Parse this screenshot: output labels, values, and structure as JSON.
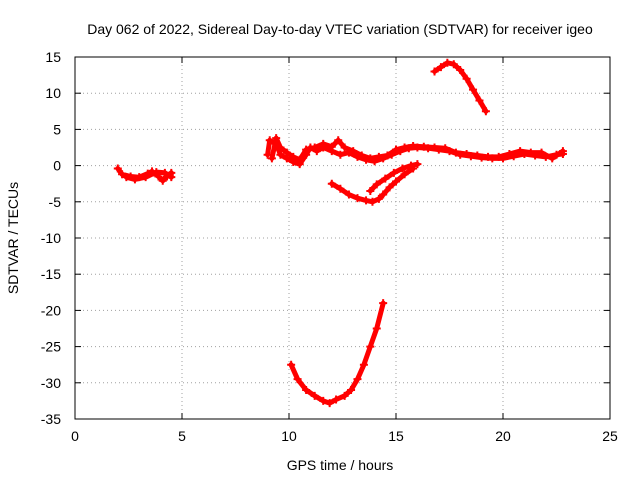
{
  "chart_data": {
    "type": "scatter",
    "title": "Day 062 of 2022, Sidereal Day-to-day VTEC variation (SDTVAR) for receiver igeo",
    "xlabel": "GPS time / hours",
    "ylabel": "SDTVAR / TECUs",
    "xlim": [
      0,
      25
    ],
    "ylim": [
      -35,
      15
    ],
    "xticks": [
      0,
      5,
      10,
      15,
      20,
      25
    ],
    "yticks": [
      -35,
      -30,
      -25,
      -20,
      -15,
      -10,
      -5,
      0,
      5,
      10,
      15
    ],
    "grid": true,
    "legend": "none",
    "series_color": "#ff0000",
    "series": [
      {
        "name": "arc-1",
        "points": [
          [
            2.0,
            -0.4
          ],
          [
            2.2,
            -1.2
          ],
          [
            2.6,
            -1.5
          ],
          [
            3.0,
            -1.6
          ],
          [
            3.4,
            -1.1
          ],
          [
            3.6,
            -0.8
          ],
          [
            3.9,
            -1.5
          ],
          [
            4.1,
            -2.1
          ],
          [
            4.3,
            -1.5
          ],
          [
            4.5,
            -1.0
          ],
          [
            4.5,
            -1.6
          ],
          [
            4.2,
            -1.0
          ],
          [
            3.8,
            -0.9
          ],
          [
            3.3,
            -1.6
          ],
          [
            2.8,
            -1.9
          ],
          [
            2.4,
            -1.6
          ]
        ]
      },
      {
        "name": "arc-2",
        "points": [
          [
            9.0,
            1.5
          ],
          [
            9.1,
            3.5
          ],
          [
            9.4,
            3.0
          ],
          [
            9.6,
            1.5
          ],
          [
            9.9,
            1.0
          ],
          [
            10.2,
            0.5
          ],
          [
            10.5,
            0.2
          ],
          [
            10.8,
            1.5
          ],
          [
            11.0,
            2.5
          ],
          [
            11.3,
            2.0
          ],
          [
            11.6,
            2.5
          ],
          [
            12.0,
            2.0
          ],
          [
            12.4,
            1.5
          ],
          [
            12.8,
            1.8
          ],
          [
            13.2,
            1.2
          ],
          [
            13.6,
            0.8
          ],
          [
            14.0,
            0.6
          ],
          [
            14.4,
            1.0
          ],
          [
            14.8,
            1.5
          ],
          [
            15.2,
            2.0
          ],
          [
            15.6,
            2.4
          ],
          [
            16.0,
            2.5
          ],
          [
            16.5,
            2.4
          ],
          [
            17.0,
            2.2
          ],
          [
            17.5,
            2.0
          ],
          [
            18.0,
            1.5
          ],
          [
            18.5,
            1.3
          ],
          [
            19.0,
            1.1
          ],
          [
            19.5,
            1.0
          ],
          [
            20.0,
            1.0
          ],
          [
            20.5,
            1.3
          ],
          [
            21.0,
            1.6
          ],
          [
            21.5,
            1.4
          ],
          [
            22.0,
            1.2
          ],
          [
            22.5,
            1.5
          ],
          [
            22.8,
            1.6
          ]
        ]
      },
      {
        "name": "arc-2-upper",
        "points": [
          [
            9.2,
            1.0
          ],
          [
            9.4,
            3.8
          ],
          [
            9.6,
            2.5
          ],
          [
            9.9,
            1.8
          ],
          [
            10.2,
            1.2
          ],
          [
            10.5,
            0.8
          ],
          [
            10.8,
            2.2
          ],
          [
            11.2,
            2.5
          ],
          [
            11.6,
            3.0
          ],
          [
            12.0,
            2.6
          ],
          [
            12.3,
            3.5
          ],
          [
            12.6,
            2.5
          ],
          [
            13.0,
            2.0
          ],
          [
            13.4,
            1.4
          ],
          [
            13.8,
            1.0
          ],
          [
            14.2,
            1.2
          ],
          [
            14.6,
            1.4
          ],
          [
            15.0,
            2.2
          ],
          [
            15.4,
            2.5
          ],
          [
            15.8,
            2.7
          ],
          [
            16.3,
            2.6
          ],
          [
            16.8,
            2.5
          ],
          [
            17.3,
            2.4
          ],
          [
            17.8,
            1.8
          ],
          [
            18.3,
            1.6
          ],
          [
            18.8,
            1.4
          ],
          [
            19.3,
            1.2
          ],
          [
            19.8,
            1.2
          ],
          [
            20.3,
            1.6
          ],
          [
            20.8,
            2.0
          ],
          [
            21.3,
            1.8
          ],
          [
            21.8,
            1.8
          ],
          [
            22.3,
            1.0
          ],
          [
            22.8,
            2.0
          ]
        ]
      },
      {
        "name": "arc-3",
        "points": [
          [
            12.0,
            -2.5
          ],
          [
            12.4,
            -3.2
          ],
          [
            12.8,
            -4.0
          ],
          [
            13.2,
            -4.5
          ],
          [
            13.6,
            -4.8
          ],
          [
            13.9,
            -5.0
          ],
          [
            14.2,
            -4.6
          ],
          [
            14.4,
            -4.0
          ],
          [
            14.7,
            -3.0
          ],
          [
            15.0,
            -2.2
          ],
          [
            15.4,
            -1.2
          ],
          [
            15.8,
            -0.4
          ]
        ]
      },
      {
        "name": "arc-3-lower",
        "points": [
          [
            13.8,
            -3.5
          ],
          [
            14.1,
            -2.6
          ],
          [
            14.5,
            -1.8
          ],
          [
            14.9,
            -1.0
          ],
          [
            15.3,
            -0.4
          ],
          [
            15.7,
            0.0
          ],
          [
            16.0,
            0.2
          ]
        ]
      },
      {
        "name": "arc-4",
        "points": [
          [
            16.8,
            13.0
          ],
          [
            17.1,
            13.6
          ],
          [
            17.4,
            14.2
          ],
          [
            17.7,
            14.0
          ],
          [
            18.0,
            13.2
          ],
          [
            18.3,
            12.0
          ],
          [
            18.6,
            10.5
          ],
          [
            18.9,
            9.0
          ],
          [
            19.2,
            7.5
          ]
        ]
      },
      {
        "name": "arc-5",
        "points": [
          [
            10.1,
            -27.5
          ],
          [
            10.4,
            -29.5
          ],
          [
            10.8,
            -31.0
          ],
          [
            11.2,
            -31.8
          ],
          [
            11.6,
            -32.5
          ],
          [
            11.9,
            -32.8
          ],
          [
            12.2,
            -32.3
          ],
          [
            12.6,
            -31.8
          ],
          [
            12.9,
            -31.0
          ],
          [
            13.2,
            -29.5
          ],
          [
            13.5,
            -27.5
          ],
          [
            13.8,
            -25.0
          ],
          [
            14.1,
            -22.5
          ],
          [
            14.4,
            -19.0
          ]
        ]
      }
    ]
  }
}
